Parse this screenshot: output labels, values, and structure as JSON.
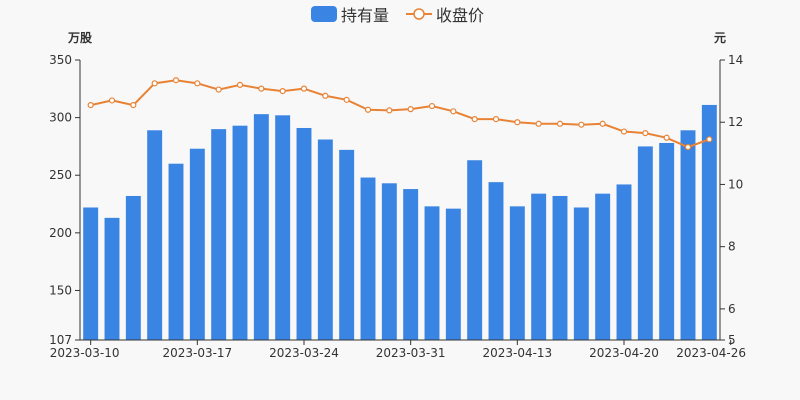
{
  "chart_data": {
    "type": "bar",
    "legend": {
      "position": "top-center",
      "items": [
        {
          "name": "持有量",
          "color": "#3a84e3",
          "shape": "rect"
        },
        {
          "name": "收盘价",
          "color": "#e88235",
          "shape": "line"
        }
      ]
    },
    "y_left": {
      "unit": "万股",
      "min": 107,
      "max": 350,
      "ticks": [
        107,
        150,
        200,
        250,
        300,
        350
      ]
    },
    "y_right": {
      "unit": "元",
      "min": 5,
      "max": 14,
      "ticks": [
        5,
        6,
        8,
        10,
        12,
        14
      ]
    },
    "grid": false,
    "x_labels": [
      "2023-03-10",
      "2023-03-17",
      "2023-03-24",
      "2023-03-31",
      "2023-04-13",
      "2023-04-20",
      "2023-04-26"
    ],
    "x_label_indices": [
      0,
      5,
      10,
      15,
      20,
      25,
      30
    ],
    "holdings": [
      222,
      213,
      232,
      289,
      260,
      273,
      290,
      293,
      303,
      302,
      291,
      281,
      272,
      248,
      243,
      238,
      223,
      221,
      263,
      244,
      223,
      234,
      232,
      222,
      234,
      242,
      275,
      278,
      289,
      311
    ],
    "price": [
      12.55,
      12.7,
      12.55,
      13.25,
      13.35,
      13.25,
      13.05,
      13.2,
      13.08,
      13.0,
      13.08,
      12.85,
      12.72,
      12.4,
      12.38,
      12.42,
      12.52,
      12.35,
      12.1,
      12.1,
      12.0,
      11.95,
      11.95,
      11.92,
      11.95,
      11.7,
      11.65,
      11.5,
      11.2,
      11.45
    ],
    "colors": {
      "bar": "#3a84e3",
      "line": "#e88235",
      "point_fill": "#ffffff",
      "axis": "#333333"
    }
  }
}
